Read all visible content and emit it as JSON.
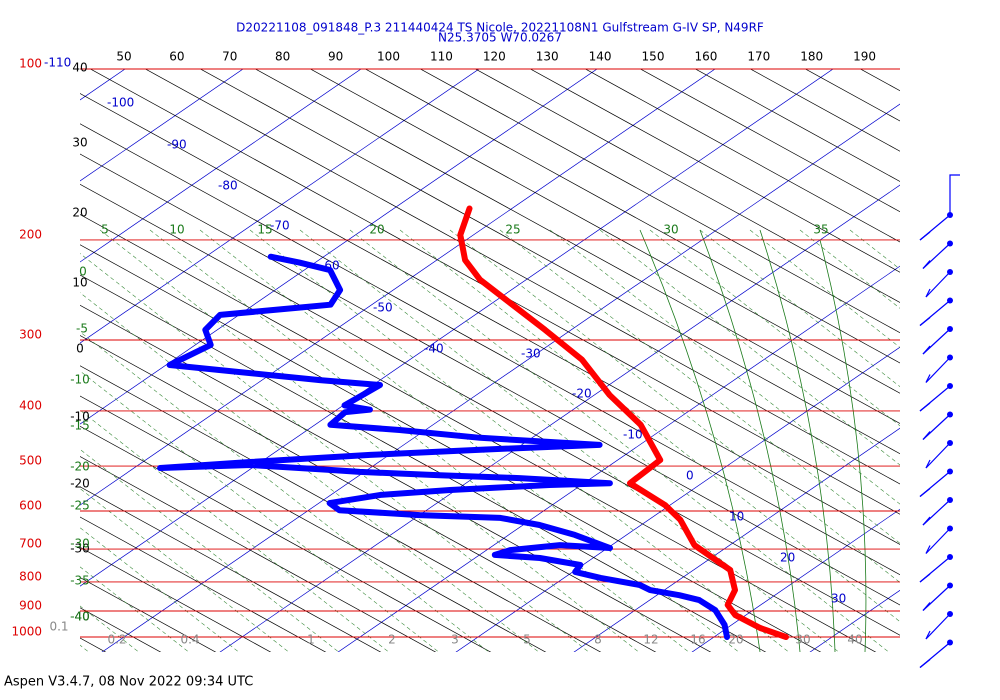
{
  "title": "D20221108_091848_P.3 211440424 TS Nicole, 20221108N1 Gulfstream G-IV SP, N49RF",
  "subtitle": "N25.3705 W70.0267",
  "footer": "Aspen V3.4.7, 08 Nov 2022  09:34 UTC",
  "chart_data": {
    "type": "skew-t",
    "ylim": [
      1000,
      100
    ],
    "log_y": true,
    "yticks": [
      100,
      200,
      300,
      400,
      500,
      600,
      700,
      800,
      900,
      1000
    ],
    "top_ticks": [
      50,
      60,
      70,
      80,
      90,
      100,
      110,
      120,
      130,
      140,
      150,
      160,
      170,
      180,
      190
    ],
    "height_labels": [
      40,
      30,
      20,
      10,
      0,
      -10,
      -20,
      -30,
      -40
    ],
    "green_left_labels": [
      0,
      -5,
      -10,
      -15,
      -20,
      -25,
      -30,
      -35,
      -40
    ],
    "green_top_labels": [
      5,
      10,
      15,
      20,
      25,
      30,
      35
    ],
    "isotherm_labels": [
      -110,
      -100,
      -90,
      -80,
      -70,
      -60,
      -50,
      -40,
      -30,
      -20,
      -10,
      0,
      10,
      20,
      30
    ],
    "mixing_ratio_labels": [
      0.1,
      0.2,
      0.4,
      1,
      2,
      3,
      5,
      8,
      12,
      16,
      20,
      30,
      40
    ],
    "series": [
      {
        "color": "#ff0000",
        "pressure": [
          1000,
          964,
          915,
          878,
          827,
          762,
          689,
          622,
          586,
          536,
          488,
          423,
          375,
          325,
          288,
          235,
          217,
          196,
          176
        ],
        "values": [
          26.1,
          22.8,
          19.1,
          17.2,
          16.0,
          13.1,
          7.0,
          2.7,
          -0.4,
          -6.1,
          -6.4,
          -12.4,
          -18.7,
          -25.4,
          -32.2,
          -43.9,
          -47.6,
          -51.1,
          -53.6
        ]
      },
      {
        "color": "#0000ff",
        "pressure": [
          1000,
          952,
          897,
          861,
          844,
          827,
          810,
          787,
          768,
          747,
          726,
          717,
          703,
          689,
          697,
          661,
          635,
          617,
          610,
          598,
          581,
          562,
          551,
          540,
          536,
          525,
          519,
          512,
          508,
          498,
          504,
          492,
          478,
          468,
          459,
          446,
          432,
          423,
          402,
          398,
          391,
          360,
          353,
          332,
          306,
          288,
          271,
          263,
          260,
          245,
          226,
          219,
          214
        ],
        "values": [
          21.1,
          19.4,
          16.8,
          14.2,
          11.9,
          8.8,
          7.3,
          3.1,
          0.2,
          -0.2,
          -4.5,
          -8.7,
          -8.0,
          -4.4,
          0.2,
          -4.4,
          -8.6,
          -12.8,
          -20.0,
          -27.4,
          -29.1,
          -25.8,
          -20.5,
          -12.7,
          -7.8,
          -16.1,
          -23.2,
          -30.4,
          -33.2,
          -40.5,
          -47.8,
          -40.9,
          -31.6,
          -22.9,
          -13.4,
          -24.4,
          -32.2,
          -38.7,
          -39.0,
          -37.2,
          -39.9,
          -39.4,
          -45.1,
          -59.7,
          -58.7,
          -61.0,
          -61.6,
          -55.7,
          -53.5,
          -54.5,
          -57.8,
          -61.4,
          -64.5
        ]
      }
    ]
  }
}
